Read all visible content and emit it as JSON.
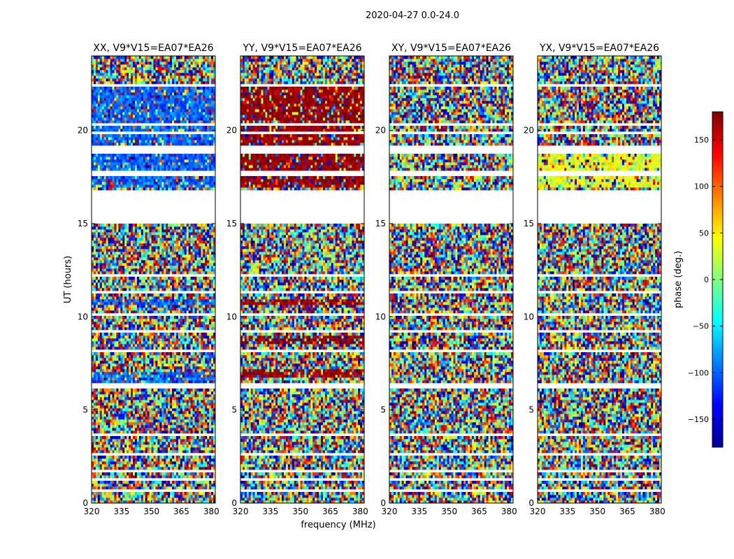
{
  "figure_title": "2020-04-27 0.0-24.0",
  "xlabel": "frequency (MHz)",
  "ylabel": "UT (hours)",
  "colorbar": {
    "label": "phase (deg.)",
    "range": [
      -180,
      180
    ],
    "ticks": [
      "150",
      "100",
      "50",
      "0",
      "−50",
      "−100",
      "−150"
    ],
    "tick_values": [
      150,
      100,
      50,
      0,
      -50,
      -100,
      -150
    ],
    "colormap": "jet"
  },
  "chart_data": [
    {
      "type": "heatmap",
      "title": "XX, V9*V15=EA07*EA26",
      "x_ticks": [
        "320",
        "335",
        "350",
        "365",
        "380"
      ],
      "x_tick_values": [
        320,
        335,
        350,
        365,
        380
      ],
      "y_ticks": [
        "0",
        "5",
        "10",
        "15",
        "20"
      ],
      "y_tick_values": [
        0,
        5,
        10,
        15,
        20
      ],
      "xlim": [
        320,
        382
      ],
      "ylim": [
        0,
        24
      ],
      "z": "phase (deg.)",
      "dominant_band": [
        [
          17.0,
          22.3,
          -100
        ],
        [
          10.6,
          11.0,
          -100
        ],
        [
          6.4,
          7.0,
          -100
        ]
      ]
    },
    {
      "type": "heatmap",
      "title": "YY, V9*V15=EA07*EA26",
      "x_ticks": [
        "320",
        "335",
        "350",
        "365",
        "380"
      ],
      "x_tick_values": [
        320,
        335,
        350,
        365,
        380
      ],
      "y_ticks": [
        "0",
        "5",
        "10",
        "15",
        "20"
      ],
      "y_tick_values": [
        0,
        5,
        10,
        15,
        20
      ],
      "xlim": [
        320,
        382
      ],
      "ylim": [
        0,
        24
      ],
      "z": "phase (deg.)",
      "dominant_band": [
        [
          17.0,
          22.3,
          175
        ],
        [
          10.6,
          11.0,
          175
        ],
        [
          8.6,
          9.0,
          175
        ],
        [
          6.8,
          7.2,
          175
        ]
      ]
    },
    {
      "type": "heatmap",
      "title": "XY, V9*V15=EA07*EA26",
      "x_ticks": [
        "320",
        "335",
        "350",
        "365",
        "380"
      ],
      "x_tick_values": [
        320,
        335,
        350,
        365,
        380
      ],
      "y_ticks": [
        "0",
        "5",
        "10",
        "15",
        "20"
      ],
      "y_tick_values": [
        0,
        5,
        10,
        15,
        20
      ],
      "xlim": [
        320,
        382
      ],
      "ylim": [
        0,
        24
      ],
      "z": "phase (deg.)",
      "dominant_band": []
    },
    {
      "type": "heatmap",
      "title": "YX, V9*V15=EA07*EA26",
      "x_ticks": [
        "320",
        "335",
        "350",
        "365",
        "380"
      ],
      "x_tick_values": [
        320,
        335,
        350,
        365,
        380
      ],
      "y_ticks": [
        "0",
        "5",
        "10",
        "15",
        "20"
      ],
      "y_tick_values": [
        0,
        5,
        10,
        15,
        20
      ],
      "xlim": [
        320,
        382
      ],
      "ylim": [
        0,
        24
      ],
      "z": "phase (deg.)",
      "dominant_band": [
        [
          17.0,
          19.0,
          40
        ]
      ]
    }
  ],
  "flagged_ut_ranges": [
    [
      22.3,
      22.5
    ],
    [
      20.8,
      20.9
    ],
    [
      20.3,
      20.4
    ],
    [
      19.8,
      19.9
    ],
    [
      18.8,
      19.2
    ],
    [
      17.6,
      17.8
    ],
    [
      15.0,
      16.8
    ],
    [
      14.2,
      14.3
    ],
    [
      13.3,
      13.4
    ],
    [
      12.2,
      12.3
    ],
    [
      11.3,
      11.4
    ],
    [
      10.1,
      10.2
    ],
    [
      9.2,
      9.3
    ],
    [
      8.1,
      8.2
    ],
    [
      7.3,
      7.4
    ],
    [
      6.1,
      6.4
    ],
    [
      5.2,
      5.3
    ],
    [
      3.6,
      3.7
    ],
    [
      2.6,
      2.7
    ],
    [
      1.7,
      1.8
    ],
    [
      1.2,
      1.3
    ],
    [
      0.6,
      0.7
    ]
  ]
}
